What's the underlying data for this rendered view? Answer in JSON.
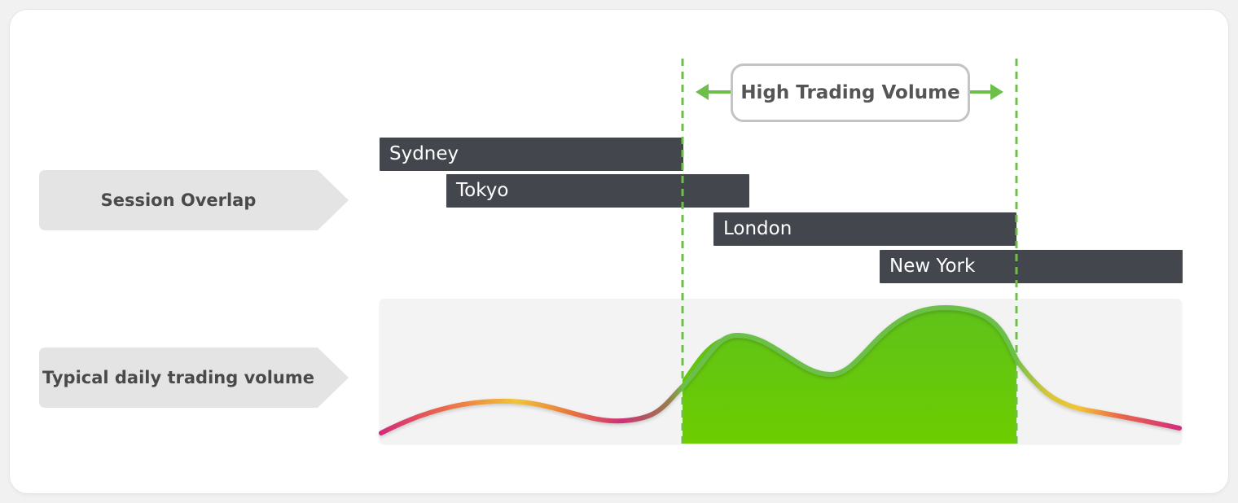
{
  "labels": {
    "session_overlap": "Session Overlap",
    "daily_volume": "Typical daily trading volume"
  },
  "callout": {
    "text": "High Trading Volume"
  },
  "sessions": [
    {
      "name": "Sydney"
    },
    {
      "name": "Tokyo"
    },
    {
      "name": "London"
    },
    {
      "name": "New York"
    }
  ],
  "colors": {
    "session_bar": "#43474d",
    "high_volume_fill": "#66c800",
    "guide_line": "#6cc04a",
    "curve_low": "#d22a7c",
    "curve_mid": "#f2c436",
    "label_tag": "#e4e4e4"
  }
}
